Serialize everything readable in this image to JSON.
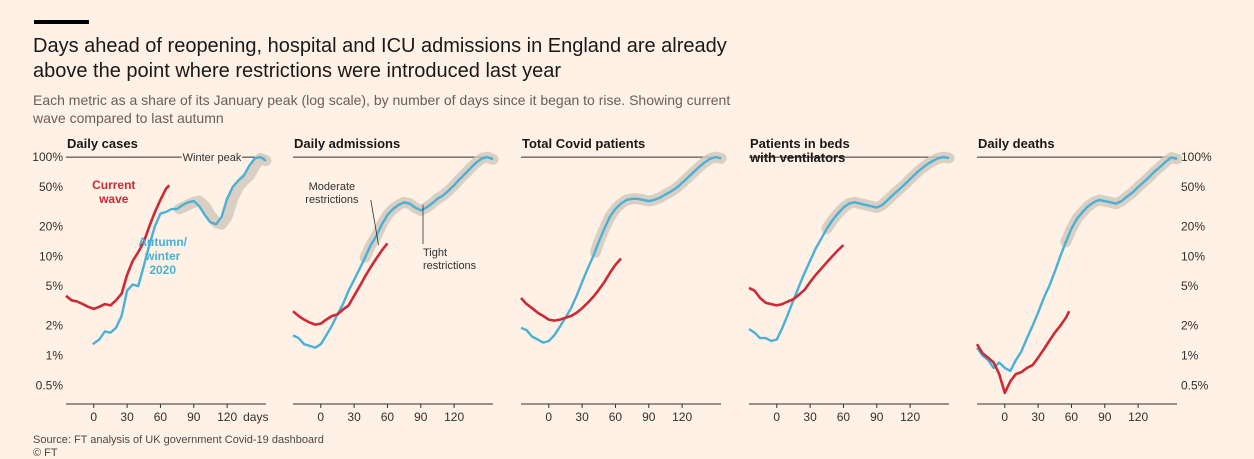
{
  "header": {
    "title": "Days ahead of reopening, hospital and ICU admissions in England are already above the point where restrictions were introduced last year",
    "subtitle": "Each metric as a share of its January peak (log scale), by number of days since it began to rise. Showing current wave compared to last autumn"
  },
  "footer": {
    "source": "Source: FT analysis of UK government Covid-19 dashboard",
    "copyright": "© FT"
  },
  "colors": {
    "background": "#fff1e5",
    "current_wave": "#cc2a36",
    "autumn_winter": "#4bb0d6",
    "restriction_band": "#d4c9bd",
    "axis": "#33302e",
    "text": "#33302e"
  },
  "chart_data": {
    "type": "line",
    "scale": "log",
    "y_ticks": [
      0.5,
      1,
      2,
      5,
      10,
      20,
      50,
      100
    ],
    "y_tick_labels": [
      "0.5%",
      "1%",
      "2%",
      "5%",
      "10%",
      "20%",
      "50%",
      "100%"
    ],
    "ylim": [
      0.4,
      110
    ],
    "xlim": [
      -25,
      155
    ],
    "x_ticks": [
      0,
      30,
      60,
      90,
      120
    ],
    "x_tick_labels": [
      "0",
      "30",
      "60",
      "90",
      "120"
    ],
    "x_unit_label": "days",
    "legend": {
      "current": "Current wave",
      "autumn": "Autumn/ winter 2020"
    },
    "annotations": {
      "winter_peak": "Winter peak",
      "moderate": "Moderate restrictions",
      "tight": "Tight restrictions"
    },
    "panels": [
      {
        "title": "Daily cases",
        "autumn": {
          "x": [
            -1,
            5,
            10,
            15,
            20,
            25,
            30,
            35,
            40,
            45,
            50,
            55,
            60,
            65,
            70,
            75,
            80,
            85,
            90,
            95,
            100,
            105,
            110,
            115,
            120,
            125,
            130,
            135,
            140,
            145,
            150,
            155
          ],
          "y": [
            1.3,
            1.45,
            1.75,
            1.7,
            1.9,
            2.5,
            4.5,
            5.2,
            5.0,
            8,
            13,
            20,
            27,
            28,
            30,
            30,
            33,
            35,
            36,
            32,
            26,
            22,
            21,
            25,
            38,
            50,
            58,
            65,
            82,
            97,
            100,
            92
          ]
        },
        "current": {
          "x": [
            -25,
            -20,
            -15,
            -10,
            -5,
            0,
            5,
            10,
            15,
            20,
            25,
            30,
            35,
            40,
            45,
            50,
            55,
            60,
            65,
            68
          ],
          "y": [
            4.0,
            3.6,
            3.5,
            3.3,
            3.1,
            2.95,
            3.1,
            3.3,
            3.2,
            3.6,
            4.2,
            6.5,
            9.0,
            11,
            14,
            20,
            28,
            37,
            48,
            52
          ]
        },
        "restriction": {
          "x": [
            77,
            85,
            90,
            95,
            100,
            105,
            110,
            115,
            120,
            125,
            130,
            135,
            140,
            145,
            150,
            155
          ],
          "y": [
            30,
            33,
            35,
            36,
            32,
            26,
            22,
            21,
            25,
            38,
            50,
            58,
            65,
            82,
            97,
            92
          ]
        }
      },
      {
        "title": "Daily admissions",
        "autumn": {
          "x": [
            -25,
            -20,
            -15,
            -10,
            -5,
            0,
            5,
            10,
            15,
            20,
            25,
            30,
            35,
            40,
            45,
            50,
            55,
            60,
            65,
            70,
            75,
            80,
            85,
            90,
            95,
            100,
            105,
            110,
            115,
            120,
            125,
            130,
            135,
            140,
            145,
            150,
            155
          ],
          "y": [
            1.6,
            1.5,
            1.3,
            1.25,
            1.2,
            1.3,
            1.6,
            2.0,
            2.6,
            3.3,
            4.5,
            5.8,
            7.5,
            9.8,
            13,
            16,
            21,
            26,
            30,
            33,
            35,
            34,
            31,
            29,
            31,
            34,
            38,
            41,
            46,
            52,
            60,
            68,
            78,
            88,
            97,
            100,
            95
          ]
        },
        "current": {
          "x": [
            -25,
            -20,
            -15,
            -10,
            -5,
            0,
            5,
            10,
            15,
            20,
            25,
            30,
            35,
            40,
            45,
            50,
            55,
            60
          ],
          "y": [
            2.8,
            2.5,
            2.3,
            2.15,
            2.05,
            2.1,
            2.3,
            2.5,
            2.6,
            2.9,
            3.2,
            4.0,
            5.0,
            6.3,
            7.8,
            9.5,
            11.5,
            13.5
          ]
        },
        "restriction": {
          "x": [
            40,
            45,
            50,
            55,
            60,
            65,
            70,
            75,
            80,
            85,
            90,
            95,
            100,
            105,
            110,
            115,
            120,
            125,
            130,
            135,
            140,
            145,
            150,
            155
          ],
          "y": [
            9.8,
            13,
            16,
            21,
            26,
            30,
            33,
            35,
            34,
            31,
            29,
            31,
            34,
            38,
            41,
            46,
            52,
            60,
            68,
            78,
            88,
            97,
            100,
            95
          ]
        }
      },
      {
        "title": "Total Covid patients",
        "autumn": {
          "x": [
            -25,
            -20,
            -15,
            -10,
            -5,
            0,
            5,
            10,
            15,
            20,
            25,
            30,
            35,
            40,
            45,
            50,
            55,
            60,
            65,
            70,
            75,
            80,
            85,
            90,
            95,
            100,
            105,
            110,
            115,
            120,
            125,
            130,
            135,
            140,
            145,
            150,
            155
          ],
          "y": [
            1.9,
            1.8,
            1.55,
            1.45,
            1.35,
            1.4,
            1.6,
            1.95,
            2.4,
            3.0,
            4.0,
            5.5,
            7.5,
            10,
            14,
            19,
            25,
            30,
            34,
            37,
            38,
            38,
            37,
            36,
            37,
            39,
            42,
            45,
            49,
            55,
            62,
            70,
            79,
            88,
            96,
            100,
            97
          ]
        },
        "current": {
          "x": [
            -25,
            -20,
            -15,
            -10,
            -5,
            0,
            5,
            10,
            15,
            20,
            25,
            30,
            35,
            40,
            45,
            50,
            55,
            60,
            65
          ],
          "y": [
            3.8,
            3.3,
            3.0,
            2.7,
            2.5,
            2.3,
            2.25,
            2.3,
            2.4,
            2.5,
            2.7,
            3.0,
            3.4,
            3.9,
            4.6,
            5.5,
            6.8,
            8.2,
            9.5
          ]
        },
        "restriction": {
          "x": [
            42,
            45,
            50,
            55,
            60,
            65,
            70,
            75,
            80,
            85,
            90,
            95,
            100,
            105,
            110,
            115,
            120,
            125,
            130,
            135,
            140,
            145,
            150,
            155
          ],
          "y": [
            11,
            14,
            19,
            25,
            30,
            34,
            37,
            38,
            38,
            37,
            36,
            37,
            39,
            42,
            45,
            49,
            55,
            62,
            70,
            79,
            88,
            96,
            100,
            97
          ]
        }
      },
      {
        "title": "Patients in beds with ventilators",
        "autumn": {
          "x": [
            -25,
            -20,
            -15,
            -10,
            -5,
            0,
            5,
            10,
            15,
            20,
            25,
            30,
            35,
            40,
            45,
            50,
            55,
            60,
            65,
            70,
            75,
            80,
            85,
            90,
            95,
            100,
            105,
            110,
            115,
            120,
            125,
            130,
            135,
            140,
            145,
            150,
            155
          ],
          "y": [
            1.85,
            1.7,
            1.5,
            1.5,
            1.4,
            1.45,
            1.9,
            2.6,
            3.6,
            5.0,
            6.8,
            9.0,
            12,
            15,
            19,
            23,
            27,
            31,
            34,
            35,
            34,
            33,
            32,
            31,
            33,
            37,
            42,
            47,
            53,
            60,
            68,
            76,
            84,
            91,
            97,
            100,
            98
          ]
        },
        "current": {
          "x": [
            -25,
            -20,
            -15,
            -10,
            -5,
            0,
            5,
            10,
            15,
            20,
            25,
            30,
            35,
            40,
            45,
            50,
            55,
            60
          ],
          "y": [
            4.8,
            4.5,
            3.8,
            3.4,
            3.3,
            3.2,
            3.3,
            3.5,
            3.7,
            4.1,
            4.6,
            5.5,
            6.5,
            7.5,
            8.7,
            10,
            11.5,
            13
          ]
        },
        "restriction": {
          "x": [
            45,
            50,
            55,
            60,
            65,
            70,
            75,
            80,
            85,
            90,
            95,
            100,
            105,
            110,
            115,
            120,
            125,
            130,
            135,
            140,
            145,
            150,
            155
          ],
          "y": [
            19,
            23,
            27,
            31,
            34,
            35,
            34,
            33,
            32,
            31,
            33,
            37,
            42,
            47,
            53,
            60,
            68,
            76,
            84,
            91,
            97,
            100,
            98
          ]
        }
      },
      {
        "title": "Daily deaths",
        "autumn": {
          "x": [
            -25,
            -20,
            -15,
            -10,
            -5,
            0,
            5,
            10,
            15,
            20,
            25,
            30,
            35,
            40,
            45,
            50,
            55,
            60,
            65,
            70,
            75,
            80,
            85,
            90,
            95,
            100,
            105,
            110,
            115,
            120,
            125,
            130,
            135,
            140,
            145,
            150,
            155
          ],
          "y": [
            1.2,
            1.0,
            0.9,
            0.75,
            0.85,
            0.75,
            0.7,
            0.9,
            1.1,
            1.5,
            2.0,
            2.7,
            3.8,
            5.0,
            7.0,
            10,
            14,
            19,
            24,
            28,
            32,
            35,
            37,
            36,
            35,
            34,
            36,
            40,
            44,
            50,
            56,
            63,
            72,
            80,
            90,
            99,
            96
          ]
        },
        "current": {
          "x": [
            -25,
            -20,
            -15,
            -10,
            -5,
            0,
            5,
            10,
            15,
            20,
            25,
            30,
            35,
            40,
            45,
            50,
            55,
            58
          ],
          "y": [
            1.3,
            1.05,
            0.95,
            0.85,
            0.65,
            0.42,
            0.55,
            0.65,
            0.68,
            0.75,
            0.8,
            0.95,
            1.15,
            1.4,
            1.7,
            2.0,
            2.4,
            2.8
          ]
        },
        "restriction": {
          "x": [
            55,
            60,
            65,
            70,
            75,
            80,
            85,
            90,
            95,
            100,
            105,
            110,
            115,
            120,
            125,
            130,
            135,
            140,
            145,
            150,
            155
          ],
          "y": [
            14,
            19,
            24,
            28,
            32,
            35,
            37,
            36,
            35,
            34,
            36,
            40,
            44,
            50,
            56,
            63,
            72,
            80,
            90,
            99,
            96
          ]
        }
      }
    ]
  }
}
